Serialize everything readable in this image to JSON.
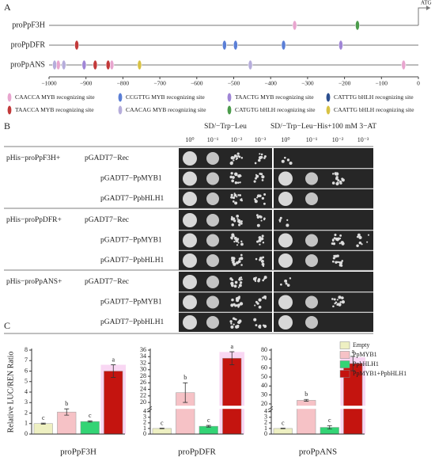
{
  "panel_labels": [
    "A",
    "B",
    "C"
  ],
  "chart_data": [
    {
      "type": "site_map",
      "start_label": "ATG",
      "categories": [
        "proPpF3H",
        "proPpDFR",
        "proPpANS"
      ],
      "xlim": [
        -1000,
        0
      ],
      "xticks": [
        {
          "value": -1000,
          "label": "−1000"
        },
        {
          "value": -900,
          "label": "−900"
        },
        {
          "value": -800,
          "label": "−800"
        },
        {
          "value": -700,
          "label": "−700"
        },
        {
          "value": -600,
          "label": "−600"
        },
        {
          "value": -500,
          "label": "−500"
        },
        {
          "value": -400,
          "label": "−400"
        },
        {
          "value": -300,
          "label": "−300"
        },
        {
          "value": -200,
          "label": "−200"
        },
        {
          "value": -100,
          "label": "−100"
        },
        0
      ],
      "series": [
        {
          "name": "CAACCA MYB recognizing site",
          "color": "#e8a6cf",
          "x": [
            -335,
            -975,
            -830,
            -40
          ],
          "y": [
            "proPpF3H",
            "proPpANS",
            "proPpANS",
            "proPpANS"
          ]
        },
        {
          "name": "CCGTTG MYB recognizing site",
          "color": "#5b7fd6",
          "x": [
            -525,
            -495,
            -365
          ],
          "y": [
            "proPpDFR",
            "proPpDFR",
            "proPpDFR"
          ]
        },
        {
          "name": "TAACTG MYB recognizing site",
          "color": "#a086d6",
          "x": [
            -210,
            -905
          ],
          "y": [
            "proPpDFR",
            "proPpANS"
          ]
        },
        {
          "name": "CATTTG bHLH recognizing site",
          "color": "#2c4f8f",
          "x": [],
          "y": []
        },
        {
          "name": "TAACCA MYB recognizing site",
          "color": "#c23a3a",
          "x": [
            -925,
            -875,
            -840
          ],
          "y": [
            "proPpDFR",
            "proPpANS",
            "proPpANS"
          ]
        },
        {
          "name": "CAACAG MYB recognizing site",
          "color": "#b6addb",
          "x": [
            -985,
            -960,
            -455
          ],
          "y": [
            "proPpANS",
            "proPpANS",
            "proPpANS"
          ]
        },
        {
          "name": "CATGTG bHLH recognizing site",
          "color": "#4c9c4c",
          "x": [
            -165
          ],
          "y": [
            "proPpF3H"
          ]
        },
        {
          "name": "CAATTG bHLH recognizing site",
          "color": "#d8c244",
          "x": [
            -755
          ],
          "y": [
            "proPpANS"
          ]
        }
      ]
    },
    {
      "type": "bar",
      "xlabel": "proPpF3H",
      "ylabel": "Relative LUC/REN Ratio",
      "values": [
        1.0,
        2.1,
        1.2,
        6.0
      ],
      "errors": [
        0.05,
        0.3,
        0.06,
        0.6
      ],
      "significance": [
        "c",
        "b",
        "c",
        "a"
      ],
      "ylim": [
        0,
        8
      ],
      "yticks": [
        0,
        1,
        2,
        3,
        4,
        5,
        6,
        7,
        8
      ]
    },
    {
      "type": "bar",
      "xlabel": "proPpDFR",
      "values": [
        1.0,
        23,
        1.4,
        33.5
      ],
      "errors": [
        0.05,
        3,
        0.15,
        2
      ],
      "significance": [
        "c",
        "b",
        "c",
        "a"
      ],
      "ylim": [
        0,
        36
      ],
      "ybreak": [
        4.5,
        19
      ],
      "yticks": [
        0,
        1,
        2,
        3,
        4,
        20,
        22,
        24,
        26,
        28,
        30,
        32,
        34,
        36
      ]
    },
    {
      "type": "bar",
      "xlabel": "proPpANS",
      "categories": [
        "Empty",
        "PpMYB1",
        "PpbHLH1",
        "PpMYB1+PpbHLH1"
      ],
      "colors": [
        "#eef0c2",
        "#f6c2c6",
        "#33d475",
        "#c4140f"
      ],
      "legend": "upper right",
      "values": [
        1.0,
        24,
        1.2,
        65
      ],
      "errors": [
        0.05,
        1,
        0.3,
        8
      ],
      "significance": [
        "c",
        "b",
        "c",
        "a"
      ],
      "ylim": [
        0,
        80
      ],
      "ybreak": [
        4.5,
        18
      ],
      "yticks": [
        0,
        1,
        2,
        3,
        4,
        20,
        30,
        40,
        50,
        60,
        70,
        80
      ]
    }
  ],
  "panel_b": {
    "conditions": [
      "SD/−Trp−Leu",
      "SD/−Trp−Leu−His+100 mM 3−AT"
    ],
    "dilutions": [
      "10⁰",
      "10⁻¹",
      "10⁻²",
      "10⁻³"
    ],
    "groups": [
      {
        "bait": "pHis−proPpF3H+",
        "preys": [
          "pGADT7−Rec",
          "pGADT7−PpMYB1",
          "pGADT7−PpbHLH1"
        ]
      },
      {
        "bait": "pHis−proPpDFR+",
        "preys": [
          "pGADT7−Rec",
          "pGADT7−PpMYB1",
          "pGADT7−PpbHLH1"
        ]
      },
      {
        "bait": "pHis−proPpANS+",
        "preys": [
          "pGADT7−Rec",
          "pGADT7−PpMYB1",
          "pGADT7−PpbHLH1"
        ]
      }
    ]
  }
}
